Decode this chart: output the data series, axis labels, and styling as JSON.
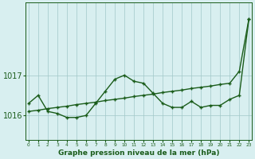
{
  "line1_x": [
    0,
    1,
    2,
    3,
    4,
    5,
    6,
    7,
    8,
    9,
    10,
    11,
    12,
    13,
    14,
    15,
    16,
    17,
    18,
    19,
    20,
    21,
    22,
    23
  ],
  "line1_y": [
    1016.3,
    1016.5,
    1016.1,
    1016.05,
    1015.95,
    1015.95,
    1016.0,
    1016.3,
    1016.6,
    1016.9,
    1017.0,
    1016.85,
    1016.8,
    1016.55,
    1016.3,
    1016.2,
    1016.2,
    1016.35,
    1016.2,
    1016.25,
    1016.25,
    1016.4,
    1016.5,
    1018.4
  ],
  "line2_x": [
    0,
    1,
    2,
    3,
    4,
    5,
    6,
    7,
    8,
    9,
    10,
    11,
    12,
    13,
    14,
    15,
    16,
    17,
    18,
    19,
    20,
    21,
    22,
    23
  ],
  "line2_y": [
    1016.1,
    1016.13,
    1016.17,
    1016.2,
    1016.23,
    1016.27,
    1016.3,
    1016.33,
    1016.37,
    1016.4,
    1016.43,
    1016.47,
    1016.5,
    1016.53,
    1016.57,
    1016.6,
    1016.63,
    1016.67,
    1016.7,
    1016.73,
    1016.77,
    1016.8,
    1017.1,
    1018.4
  ],
  "line_color": "#1a5c1a",
  "bg_color": "#d8eff0",
  "grid_color": "#a0c8c8",
  "ylabel_1017": 1017,
  "ylabel_1016": 1016,
  "xlabel": "Graphe pression niveau de la mer (hPa)",
  "xticks": [
    0,
    1,
    2,
    3,
    4,
    5,
    6,
    7,
    8,
    9,
    10,
    11,
    12,
    13,
    14,
    15,
    16,
    17,
    18,
    19,
    20,
    21,
    22,
    23
  ],
  "ylim": [
    1015.4,
    1018.8
  ],
  "xlim": [
    -0.3,
    23.3
  ],
  "marker": "+",
  "markersize": 3.5,
  "linewidth": 1.0
}
